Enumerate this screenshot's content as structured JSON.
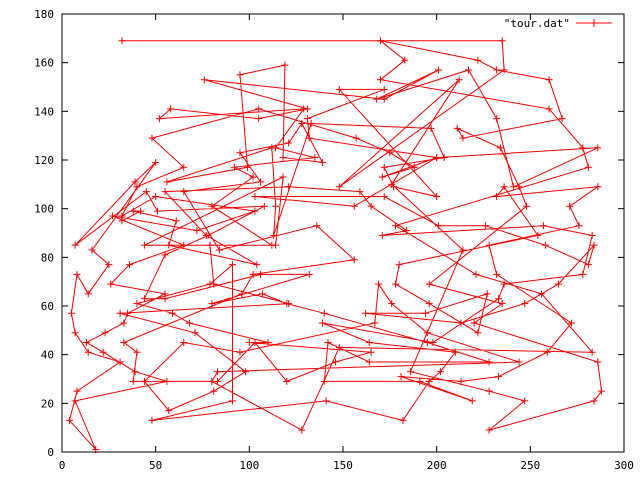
{
  "chart_data": {
    "type": "line",
    "title": "",
    "xlabel": "",
    "ylabel": "",
    "xlim": [
      0,
      300
    ],
    "ylim": [
      0,
      180
    ],
    "x_ticks": [
      "0",
      "50",
      "100",
      "150",
      "200",
      "250",
      "300"
    ],
    "y_ticks": [
      "0",
      "20",
      "40",
      "60",
      "80",
      "100",
      "120",
      "140",
      "160",
      "180"
    ],
    "grid": false,
    "legend_position": "top-right",
    "series_color": "#ff0000",
    "marker": "plus",
    "series": [
      {
        "name": "\"tour.dat\"",
        "x": [
          32,
          235,
          236,
          148,
          212,
          176,
          214,
          186,
          228,
          247,
          228,
          284,
          288,
          286,
          220,
          235,
          196,
          248,
          244,
          234,
          211,
          214,
          267,
          260,
          232,
          222,
          170,
          183,
          170,
          260,
          278,
          281,
          178,
          221,
          256,
          283,
          148,
          128,
          80,
          83,
          244,
          195,
          176,
          169,
          167,
          95,
          65,
          44,
          57,
          81,
          98,
          71,
          31,
          121,
          81,
          79,
          114,
          118,
          44,
          112,
          80,
          102,
          92,
          135,
          114,
          129,
          52,
          58,
          105,
          131,
          76,
          172,
          201,
          168,
          217,
          232,
          241,
          286,
          200,
          156,
          103,
          172,
          201,
          226,
          258,
          281,
          284,
          265,
          247,
          213,
          162,
          194,
          227,
          222,
          196,
          178,
          180,
          254,
          236,
          232,
          286,
          271,
          276,
          228,
          232,
          272,
          259,
          233,
          213,
          181,
          219,
          191,
          140,
          142,
          164,
          228,
          195,
          140,
          120,
          107,
          80,
          132,
          106,
          55,
          44,
          55,
          78,
          108,
          51,
          45,
          7,
          39,
          50,
          16,
          25,
          14,
          8,
          5,
          7,
          14,
          31,
          8,
          4,
          18,
          7,
          56,
          39,
          22,
          13,
          23,
          33,
          35,
          55,
          26,
          36,
          65,
          27,
          72,
          103,
          50,
          32,
          40,
          65,
          48,
          105,
          157,
          175,
          188,
          171,
          200,
          132,
          131,
          172,
          148,
          200,
          177,
          172,
          204,
          197,
          133,
          113,
          114,
          112,
          56,
          99,
          95,
          119,
          118,
          139,
          128,
          121,
          95,
          106,
          65,
          84,
          136,
          156,
          102,
          96,
          33,
          40,
          38,
          83,
          103,
          120,
          146,
          165,
          100,
          110,
          68,
          59,
          40,
          79,
          91,
          91,
          48,
          141,
          182,
          196,
          202,
          210,
          164,
          139,
          198,
          233,
          236,
          278,
          283,
          257,
          171,
          184,
          165,
          159,
          121,
          55,
          77,
          104,
          57,
          61,
          38,
          42,
          32
        ],
        "y": [
          169,
          169,
          157,
          109,
          153,
          110,
          83,
          33,
          25,
          21,
          9,
          21,
          25,
          37,
          53,
          61,
          69,
          101,
          109,
          125,
          133,
          129,
          137,
          153,
          157,
          161,
          169,
          161,
          153,
          141,
          125,
          117,
          93,
          73,
          65,
          41,
          43,
          9,
          29,
          33,
          37,
          49,
          61,
          69,
          53,
          41,
          45,
          29,
          17,
          25,
          33,
          49,
          57,
          61,
          69,
          85,
          85,
          113,
          85,
          85,
          101,
          113,
          117,
          121,
          125,
          141,
          137,
          141,
          137,
          141,
          153,
          145,
          157,
          145,
          157,
          137,
          109,
          125,
          121,
          101,
          105,
          105,
          93,
          93,
          85,
          77,
          85,
          69,
          61,
          53,
          57,
          57,
          65,
          49,
          61,
          69,
          77,
          89,
          109,
          105,
          109,
          101,
          93,
          85,
          73,
          53,
          41,
          31,
          29,
          31,
          21,
          29,
          29,
          45,
          37,
          37,
          45,
          57,
          61,
          65,
          61,
          73,
          73,
          63,
          63,
          81,
          89,
          101,
          99,
          107,
          85,
          111,
          119,
          83,
          77,
          65,
          73,
          57,
          49,
          41,
          37,
          25,
          13,
          1,
          21,
          29,
          33,
          41,
          45,
          49,
          53,
          57,
          65,
          69,
          77,
          85,
          97,
          91,
          99,
          105,
          97,
          109,
          117,
          129,
          141,
          129,
          123,
          117,
          113,
          121,
          129,
          137,
          149,
          149,
          105,
          109,
          117,
          121,
          133,
          135,
          89,
          101,
          125,
          111,
          117,
          155,
          159,
          121,
          119,
          135,
          127,
          123,
          111,
          107,
          83,
          93,
          79,
          73,
          65,
          45,
          41,
          29,
          29,
          45,
          29,
          37,
          41,
          45,
          45,
          53,
          57,
          61,
          69,
          77,
          21,
          13,
          21,
          13,
          29,
          33,
          41,
          45,
          53,
          45,
          63,
          69,
          73,
          89,
          93,
          89,
          91,
          101,
          107,
          109,
          107,
          89,
          77,
          85,
          95,
          99,
          99,
          95
        ]
      }
    ]
  }
}
